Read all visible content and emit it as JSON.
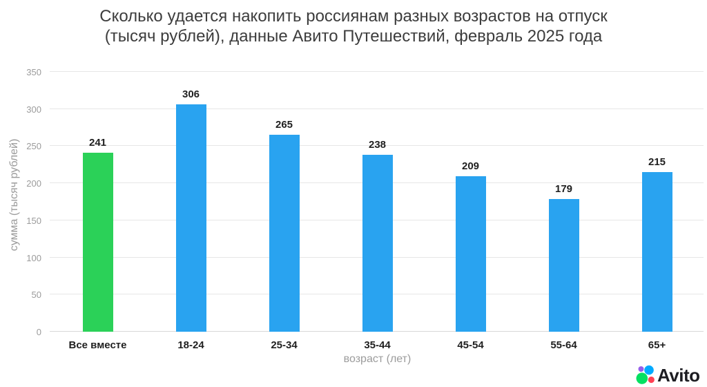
{
  "page": {
    "title_line1": "Сколько удается накопить россиянам разных возрастов на отпуск",
    "title_line2": "(тысяч рублей), данные Авито Путешествий, февраль 2025 года"
  },
  "chart_data": {
    "type": "bar",
    "title": "Сколько удается накопить россиянам разных возрастов на отпуск (тысяч рублей), данные Авито Путешествий, февраль 2025 года",
    "categories": [
      "Все вместе",
      "18-24",
      "25-34",
      "35-44",
      "45-54",
      "55-64",
      "65+"
    ],
    "values": [
      241,
      306,
      265,
      238,
      209,
      179,
      215
    ],
    "bar_colors": [
      "#2bd158",
      "#29a3f0",
      "#29a3f0",
      "#29a3f0",
      "#29a3f0",
      "#29a3f0",
      "#29a3f0"
    ],
    "highlighted_category": "Все вместе",
    "xlabel": "возраст (лет)",
    "ylabel": "сумма (тысяч рублей)",
    "ylim": [
      0,
      350
    ],
    "yticks": [
      0,
      50,
      100,
      150,
      200,
      250,
      300,
      350
    ],
    "grid": true,
    "legend": "none",
    "value_labels": true
  },
  "branding": {
    "logo_text": "Avito",
    "logo_colors": {
      "purple": "#965eeb",
      "blue": "#00aaff",
      "green": "#04e061",
      "red": "#ff4053"
    }
  },
  "style_colors": {
    "bar_default": "#29a3f0",
    "bar_highlight": "#2bd158",
    "gridline": "#e6e6e6",
    "baseline": "#d8d8d8",
    "axis_text": "#9b9b9b",
    "label_text": "#1f1f1f",
    "title_text": "#3d3d3d"
  }
}
